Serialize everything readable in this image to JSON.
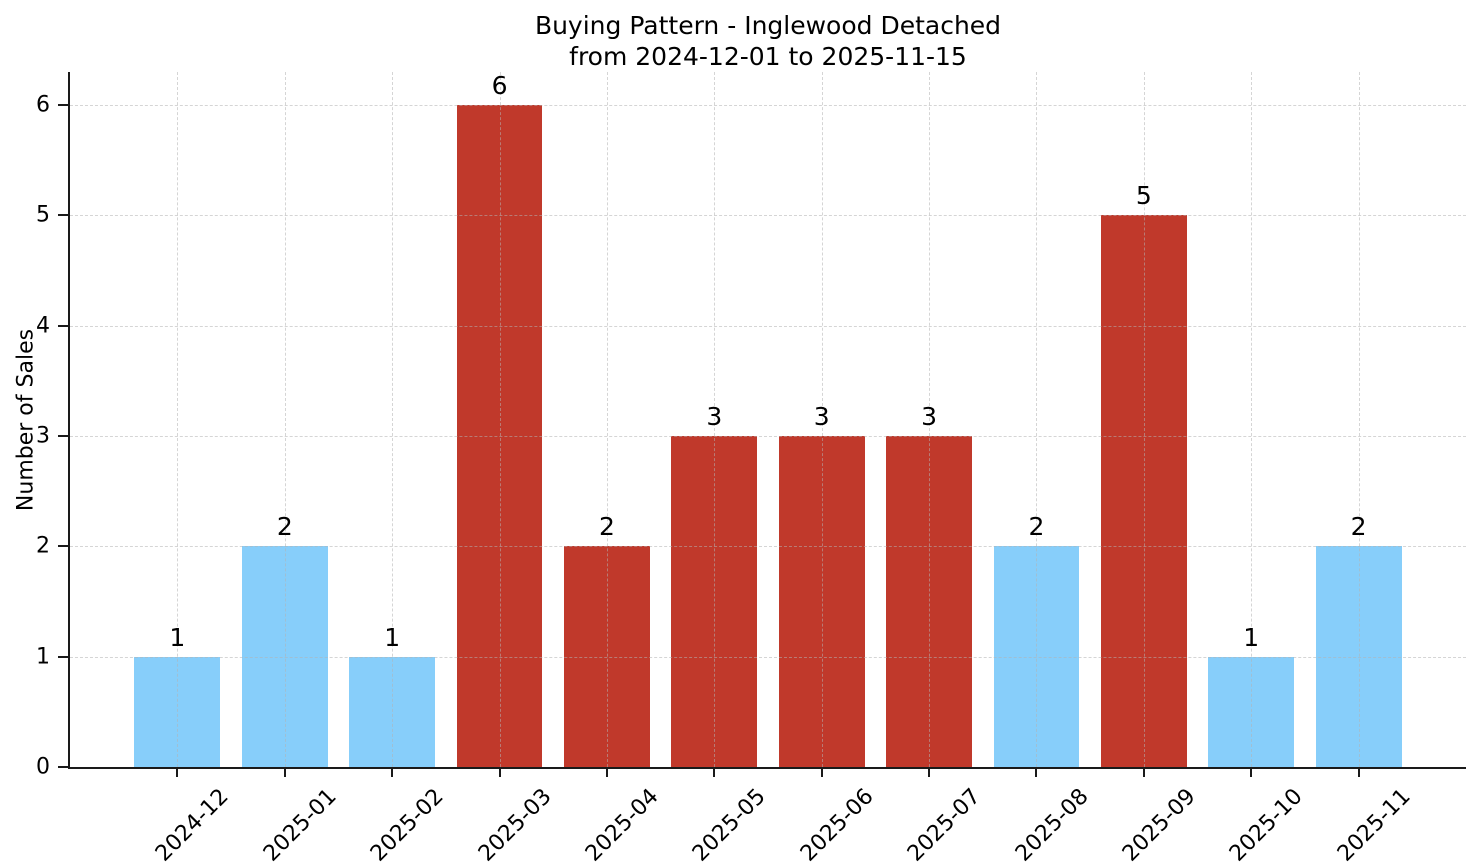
{
  "style": {
    "background": "#ffffff",
    "axis_color": "#1a1a1a",
    "text_color": "#000000",
    "grid_color": "#d8d8d8",
    "bar_blue": "#87CEFA",
    "bar_red": "#C0392B"
  },
  "chart_data": {
    "type": "bar",
    "title": "Buying Pattern - Inglewood Detached",
    "subtitle": "from 2024-12-01 to 2025-11-15",
    "xlabel": "",
    "ylabel": "Number of Sales",
    "categories": [
      "2024-12",
      "2025-01",
      "2025-02",
      "2025-03",
      "2025-04",
      "2025-05",
      "2025-06",
      "2025-07",
      "2025-08",
      "2025-09",
      "2025-10",
      "2025-11"
    ],
    "values": [
      1,
      2,
      1,
      6,
      2,
      3,
      3,
      3,
      2,
      5,
      1,
      2
    ],
    "bar_colors": [
      "#87CEFA",
      "#87CEFA",
      "#87CEFA",
      "#C0392B",
      "#C0392B",
      "#C0392B",
      "#C0392B",
      "#C0392B",
      "#87CEFA",
      "#C0392B",
      "#87CEFA",
      "#87CEFA"
    ],
    "value_labels_shown": true,
    "ylim": [
      0,
      6.3
    ],
    "yticks": [
      0,
      1,
      2,
      3,
      4,
      5,
      6
    ],
    "xtick_rotation_deg": 45,
    "grid": true,
    "legend_position": "none",
    "bar_width_fraction": 0.8
  }
}
